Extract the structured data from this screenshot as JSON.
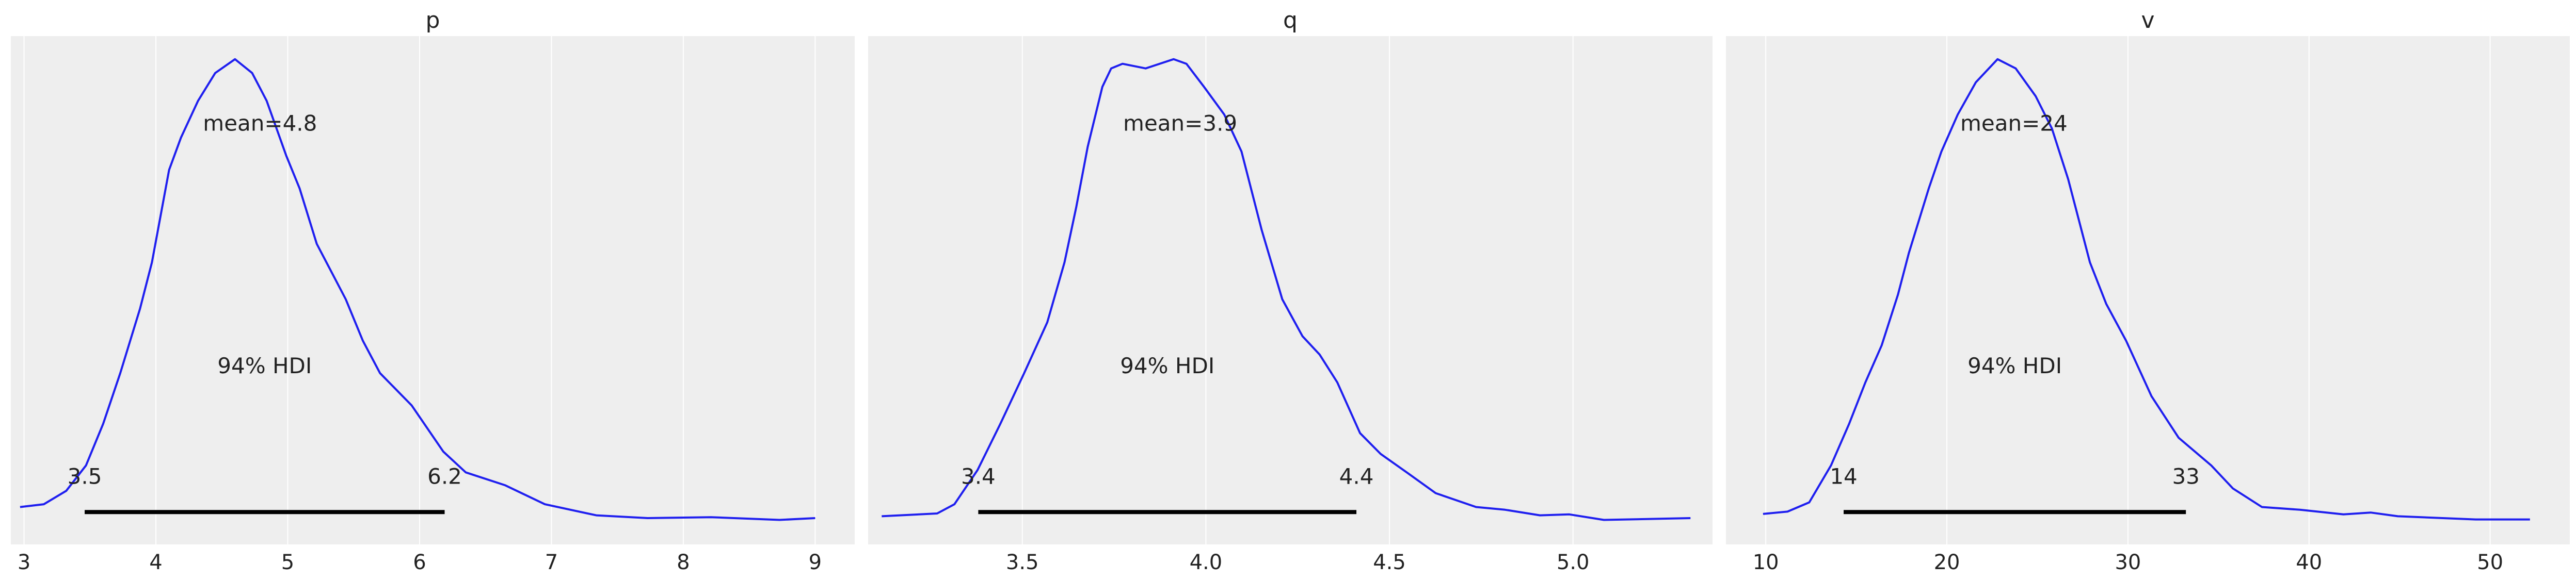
{
  "chart_data": [
    {
      "type": "line",
      "title": "p",
      "xlim": [
        2.9,
        9.3
      ],
      "ylim": [
        -0.051,
        1.05
      ],
      "xticks": [
        3,
        4,
        5,
        6,
        7,
        8,
        9
      ],
      "xtick_labels": [
        "3",
        "4",
        "5",
        "6",
        "7",
        "8",
        "9"
      ],
      "grid": true,
      "line_color": "#1f1fef",
      "x": [
        2.97,
        3.15,
        3.32,
        3.47,
        3.6,
        3.73,
        3.88,
        3.97,
        4.1,
        4.19,
        4.32,
        4.45,
        4.6,
        4.73,
        4.84,
        4.99,
        5.09,
        5.22,
        5.44,
        5.57,
        5.7,
        5.94,
        6.18,
        6.35,
        6.65,
        6.95,
        7.34,
        7.73,
        8.21,
        8.73,
        9.0
      ],
      "y": [
        0.03,
        0.036,
        0.065,
        0.12,
        0.21,
        0.32,
        0.46,
        0.56,
        0.76,
        0.83,
        0.91,
        0.97,
        1.0,
        0.97,
        0.91,
        0.79,
        0.72,
        0.6,
        0.48,
        0.39,
        0.32,
        0.25,
        0.15,
        0.105,
        0.077,
        0.036,
        0.012,
        0.006,
        0.008,
        0.002,
        0.006
      ],
      "mean": 4.79,
      "mean_label": "mean=4.8",
      "hdi": [
        3.46,
        6.19
      ],
      "hdi_labels": [
        "3.5",
        "6.2"
      ],
      "hdi_text": "94% HDI"
    },
    {
      "type": "line",
      "title": "q",
      "xlim": [
        3.08,
        5.38
      ],
      "ylim": [
        -0.051,
        1.05
      ],
      "xticks": [
        3.5,
        4.0,
        4.5,
        5.0
      ],
      "xtick_labels": [
        "3.5",
        "4.0",
        "4.5",
        "5.0"
      ],
      "grid": true,
      "line_color": "#1f1fef",
      "x": [
        3.117,
        3.268,
        3.315,
        3.378,
        3.44,
        3.505,
        3.568,
        3.615,
        3.647,
        3.678,
        3.718,
        3.742,
        3.773,
        3.836,
        3.912,
        3.947,
        3.995,
        4.05,
        4.097,
        4.152,
        4.208,
        4.263,
        4.31,
        4.358,
        4.42,
        4.476,
        4.547,
        4.626,
        4.736,
        4.815,
        4.91,
        4.99,
        5.084,
        5.32
      ],
      "y": [
        0.01,
        0.016,
        0.036,
        0.11,
        0.21,
        0.32,
        0.43,
        0.56,
        0.68,
        0.81,
        0.94,
        0.98,
        0.99,
        0.98,
        1.0,
        0.99,
        0.94,
        0.88,
        0.8,
        0.63,
        0.48,
        0.4,
        0.36,
        0.3,
        0.19,
        0.145,
        0.105,
        0.06,
        0.03,
        0.024,
        0.012,
        0.014,
        0.002,
        0.006
      ],
      "mean": 3.93,
      "mean_label": "mean=3.9",
      "hdi": [
        3.38,
        4.41
      ],
      "hdi_labels": [
        "3.4",
        "4.4"
      ],
      "hdi_text": "94% HDI"
    },
    {
      "type": "line",
      "title": "v",
      "xlim": [
        7.8,
        54.4
      ],
      "ylim": [
        -0.051,
        1.05
      ],
      "xticks": [
        10,
        20,
        30,
        40,
        50
      ],
      "xtick_labels": [
        "10",
        "20",
        "30",
        "40",
        "50"
      ],
      "grid": true,
      "line_color": "#1f1fef",
      "x": [
        9.85,
        11.2,
        12.4,
        13.6,
        14.6,
        15.5,
        16.4,
        17.3,
        17.9,
        19.0,
        19.7,
        20.6,
        21.6,
        22.8,
        23.8,
        24.9,
        25.8,
        26.7,
        27.9,
        28.8,
        29.9,
        31.3,
        32.8,
        34.6,
        35.8,
        37.4,
        39.5,
        41.9,
        43.4,
        44.9,
        49.2,
        52.2
      ],
      "y": [
        0.015,
        0.02,
        0.04,
        0.12,
        0.21,
        0.3,
        0.38,
        0.49,
        0.58,
        0.72,
        0.8,
        0.88,
        0.95,
        1.0,
        0.98,
        0.92,
        0.85,
        0.74,
        0.56,
        0.47,
        0.39,
        0.27,
        0.18,
        0.12,
        0.07,
        0.03,
        0.024,
        0.014,
        0.018,
        0.01,
        0.003,
        0.003
      ],
      "mean": 23.7,
      "mean_label": "mean=24",
      "hdi": [
        14.3,
        33.2
      ],
      "hdi_labels": [
        "14",
        "33"
      ],
      "hdi_text": "94% HDI"
    }
  ],
  "colors": {
    "panel_bg": "#eeeeee",
    "grid": "#ffffff",
    "hdi_bar": "#000000"
  }
}
